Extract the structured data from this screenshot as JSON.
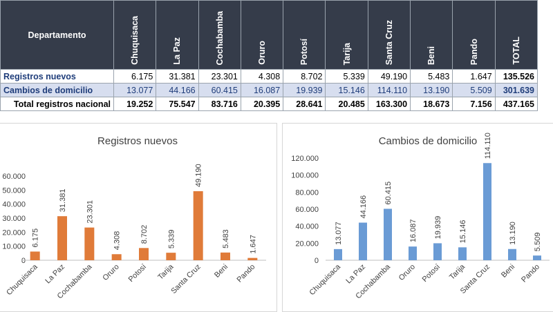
{
  "table": {
    "header_label": "Departamento",
    "departments": [
      "Chuquisaca",
      "La Paz",
      "Cochabamba",
      "Oruro",
      "Potosí",
      "Tarija",
      "Santa Cruz",
      "Beni",
      "Pando"
    ],
    "total_label": "TOTAL",
    "rows": [
      {
        "label": "Registros nuevos",
        "values": [
          "6.175",
          "31.381",
          "23.301",
          "4.308",
          "8.702",
          "5.339",
          "49.190",
          "5.483",
          "1.647"
        ],
        "total": "135.526"
      },
      {
        "label": "Cambios de domicilio",
        "values": [
          "13.077",
          "44.166",
          "60.415",
          "16.087",
          "19.939",
          "15.146",
          "114.110",
          "13.190",
          "5.509"
        ],
        "total": "301.639"
      },
      {
        "label": "Total registros nacional",
        "values": [
          "19.252",
          "75.547",
          "83.716",
          "20.395",
          "28.641",
          "20.485",
          "163.300",
          "18.673",
          "7.156"
        ],
        "total": "437.165"
      }
    ]
  },
  "chart_data": [
    {
      "type": "bar",
      "title": "Registros nuevos",
      "categories": [
        "Chuquisaca",
        "La Paz",
        "Cochabamba",
        "Oruro",
        "Potosí",
        "Tarija",
        "Santa Cruz",
        "Beni",
        "Pando"
      ],
      "values": [
        6175,
        31381,
        23301,
        4308,
        8702,
        5339,
        49190,
        5483,
        1647
      ],
      "data_labels": [
        "6.175",
        "31.381",
        "23.301",
        "4.308",
        "8.702",
        "5.339",
        "49.190",
        "5.483",
        "1.647"
      ],
      "y_ticks": [
        0,
        10000,
        20000,
        30000,
        40000,
        50000,
        60000
      ],
      "y_tick_labels": [
        "0",
        "10.000",
        "20.000",
        "30.000",
        "40.000",
        "50.000",
        "60.000"
      ],
      "ylim": [
        0,
        60000
      ],
      "color": "#e07b39",
      "grid": false
    },
    {
      "type": "bar",
      "title": "Cambios de domicilio",
      "categories": [
        "Chuquisaca",
        "La Paz",
        "Cochabamba",
        "Oruro",
        "Potosí",
        "Tarija",
        "Santa Cruz",
        "Beni",
        "Pando"
      ],
      "values": [
        13077,
        44166,
        60415,
        16087,
        19939,
        15146,
        114110,
        13190,
        5509
      ],
      "data_labels": [
        "13.077",
        "44.166",
        "60.415",
        "16.087",
        "19.939",
        "15.146",
        "114.110",
        "13.190",
        "5.509"
      ],
      "y_ticks": [
        0,
        20000,
        40000,
        60000,
        80000,
        100000,
        120000
      ],
      "y_tick_labels": [
        "0",
        "20.000",
        "40.000",
        "60.000",
        "80.000",
        "100.000",
        "120.000"
      ],
      "ylim": [
        0,
        120000
      ],
      "color": "#6a9bd5",
      "grid": false
    }
  ]
}
